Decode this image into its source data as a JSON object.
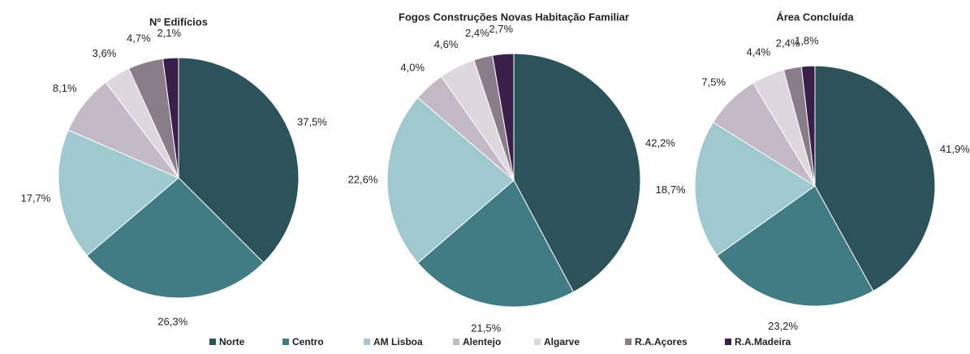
{
  "chart_data": [
    {
      "type": "pie",
      "title": "Nº Edifícios",
      "categories": [
        "Norte",
        "Centro",
        "AM Lisboa",
        "Alentejo",
        "Algarve",
        "R.A.Açores",
        "R.A.Madeira"
      ],
      "colors": [
        "#2c535a",
        "#417c85",
        "#9fc8cf",
        "#c4b9c6",
        "#dcd8de",
        "#8a7c89",
        "#3a1f4a"
      ],
      "values": [
        37.5,
        26.3,
        17.7,
        8.1,
        3.6,
        4.7,
        2.1
      ],
      "value_labels": [
        "37,5%",
        "26,3%",
        "17,7%",
        "8,1%",
        "3,6%",
        "4,7%",
        "2,1%"
      ]
    },
    {
      "type": "pie",
      "title": "Fogos Construções Novas Habitação Familiar",
      "values": [
        42.2,
        21.5,
        22.6,
        4.0,
        4.6,
        2.4,
        2.7
      ],
      "value_labels": [
        "42,2%",
        "21,5%",
        "22,6%",
        "4,0%",
        "4,6%",
        "2,4%",
        "2,7%"
      ]
    },
    {
      "type": "pie",
      "title": "Área Concluída",
      "values": [
        41.9,
        23.2,
        18.7,
        7.5,
        4.4,
        2.4,
        1.8
      ],
      "value_labels": [
        "41,9%",
        "23,2%",
        "18,7%",
        "7,5%",
        "4,4%",
        "2,4%",
        "1,8%"
      ]
    }
  ]
}
